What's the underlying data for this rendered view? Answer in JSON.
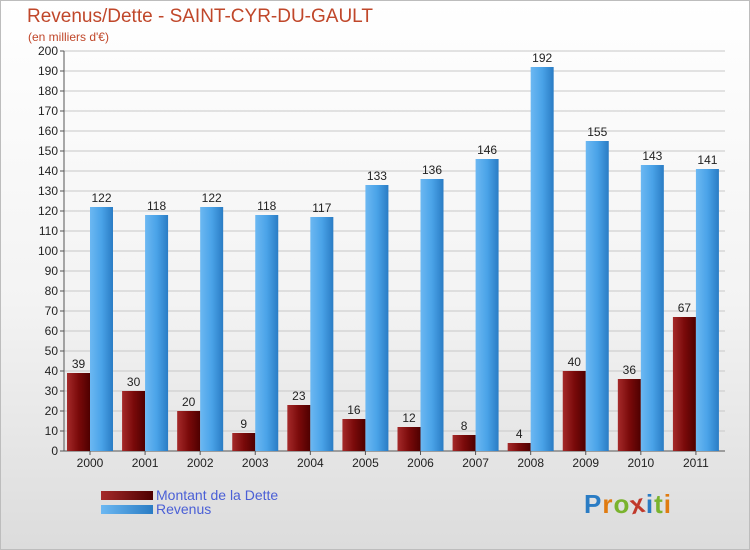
{
  "chart_data": {
    "type": "bar",
    "title": "Revenus/Dette - SAINT-CYR-DU-GAULT",
    "subtitle": "(en milliers d'€)",
    "categories": [
      "2000",
      "2001",
      "2002",
      "2003",
      "2004",
      "2005",
      "2006",
      "2007",
      "2008",
      "2009",
      "2010",
      "2011"
    ],
    "series": [
      {
        "name": "Montant de la Dette",
        "color": "#7a0a0a",
        "values": [
          39,
          30,
          20,
          9,
          23,
          16,
          12,
          8,
          4,
          40,
          36,
          67
        ]
      },
      {
        "name": "Revenus",
        "color": "#4aa3e8",
        "values": [
          122,
          118,
          122,
          118,
          117,
          133,
          136,
          146,
          192,
          155,
          143,
          141
        ]
      }
    ],
    "ylim": [
      0,
      200
    ],
    "ytick_step": 10,
    "grid": true,
    "legend_position": "bottom-left"
  },
  "logo": {
    "text": "Proxiti"
  }
}
